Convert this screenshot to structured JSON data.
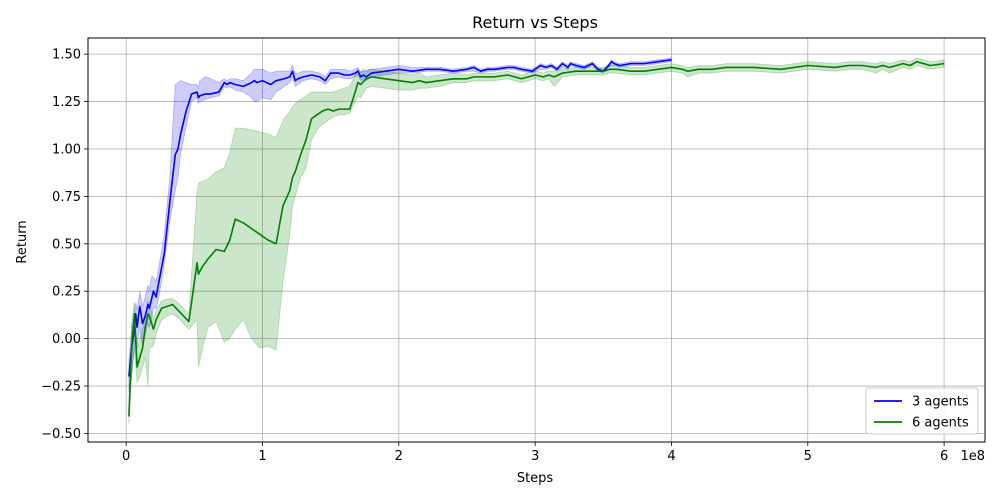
{
  "chart_data": {
    "type": "line",
    "title": "Return vs Steps",
    "xlabel": "Steps",
    "ylabel": "Return",
    "x_offset_text": "1e8",
    "xlim": [
      -0.28,
      6.3
    ],
    "ylim": [
      -0.545,
      1.585
    ],
    "xticks": [
      0,
      1,
      2,
      3,
      4,
      5,
      6
    ],
    "xtick_labels": [
      "0",
      "1",
      "2",
      "3",
      "4",
      "5",
      "6"
    ],
    "yticks": [
      -0.5,
      -0.25,
      0.0,
      0.25,
      0.5,
      0.75,
      1.0,
      1.25,
      1.5
    ],
    "ytick_labels": [
      "−0.50",
      "−0.25",
      "0.00",
      "0.25",
      "0.50",
      "0.75",
      "1.00",
      "1.25",
      "1.50"
    ],
    "grid": true,
    "legend_position": "lower-right",
    "series": [
      {
        "name": "3 agents",
        "color": "#0000ff",
        "x": [
          0.02,
          0.04,
          0.06,
          0.07,
          0.08,
          0.09,
          0.1,
          0.12,
          0.14,
          0.16,
          0.17,
          0.19,
          0.2,
          0.22,
          0.24,
          0.28,
          0.32,
          0.36,
          0.38,
          0.4,
          0.44,
          0.48,
          0.52,
          0.53,
          0.54,
          0.58,
          0.62,
          0.68,
          0.72,
          0.74,
          0.76,
          0.8,
          0.86,
          0.92,
          0.94,
          0.96,
          1.0,
          1.06,
          1.1,
          1.16,
          1.2,
          1.22,
          1.24,
          1.26,
          1.3,
          1.36,
          1.42,
          1.46,
          1.5,
          1.56,
          1.6,
          1.64,
          1.68,
          1.7,
          1.72,
          1.74,
          1.76,
          1.78,
          1.8,
          1.9,
          2.0,
          2.1,
          2.2,
          2.3,
          2.4,
          2.5,
          2.55,
          2.6,
          2.65,
          2.7,
          2.8,
          2.84,
          2.9,
          2.98,
          3.04,
          3.08,
          3.12,
          3.16,
          3.2,
          3.24,
          3.26,
          3.3,
          3.36,
          3.42,
          3.46,
          3.5,
          3.54,
          3.56,
          3.58,
          3.62,
          3.7,
          3.8,
          3.9,
          4.0
        ],
        "y": [
          -0.2,
          -0.05,
          0.05,
          0.13,
          0.06,
          0.12,
          0.17,
          0.08,
          0.12,
          0.18,
          0.16,
          0.22,
          0.25,
          0.22,
          0.3,
          0.45,
          0.72,
          0.97,
          1.0,
          1.08,
          1.2,
          1.29,
          1.3,
          1.27,
          1.28,
          1.29,
          1.29,
          1.3,
          1.35,
          1.34,
          1.35,
          1.34,
          1.33,
          1.35,
          1.36,
          1.35,
          1.36,
          1.34,
          1.36,
          1.37,
          1.38,
          1.41,
          1.36,
          1.37,
          1.38,
          1.39,
          1.38,
          1.36,
          1.4,
          1.4,
          1.39,
          1.39,
          1.4,
          1.41,
          1.38,
          1.39,
          1.38,
          1.39,
          1.4,
          1.41,
          1.42,
          1.41,
          1.42,
          1.42,
          1.41,
          1.42,
          1.43,
          1.41,
          1.42,
          1.42,
          1.43,
          1.43,
          1.42,
          1.41,
          1.44,
          1.43,
          1.44,
          1.42,
          1.45,
          1.43,
          1.45,
          1.44,
          1.43,
          1.45,
          1.42,
          1.41,
          1.44,
          1.46,
          1.45,
          1.44,
          1.45,
          1.45,
          1.46,
          1.47
        ],
        "lower": [
          -0.28,
          -0.2,
          -0.05,
          0.03,
          -0.05,
          0.02,
          0.06,
          -0.04,
          0.02,
          0.08,
          0.06,
          0.12,
          0.16,
          0.16,
          0.22,
          0.4,
          0.62,
          0.78,
          0.85,
          0.98,
          1.12,
          1.25,
          1.27,
          1.24,
          1.25,
          1.26,
          1.27,
          1.28,
          1.33,
          1.32,
          1.33,
          1.31,
          1.3,
          1.27,
          1.25,
          1.25,
          1.27,
          1.26,
          1.3,
          1.33,
          1.35,
          1.38,
          1.33,
          1.34,
          1.36,
          1.37,
          1.36,
          1.34,
          1.37,
          1.38,
          1.37,
          1.37,
          1.38,
          1.39,
          1.36,
          1.37,
          1.36,
          1.37,
          1.38,
          1.39,
          1.4,
          1.4,
          1.41,
          1.41,
          1.4,
          1.41,
          1.41,
          1.4,
          1.41,
          1.41,
          1.42,
          1.42,
          1.41,
          1.4,
          1.42,
          1.42,
          1.43,
          1.41,
          1.43,
          1.42,
          1.44,
          1.43,
          1.42,
          1.44,
          1.41,
          1.4,
          1.43,
          1.44,
          1.44,
          1.43,
          1.44,
          1.44,
          1.45,
          1.46
        ],
        "upper": [
          -0.12,
          0.05,
          0.13,
          0.19,
          0.15,
          0.2,
          0.25,
          0.17,
          0.22,
          0.28,
          0.26,
          0.33,
          0.32,
          0.3,
          0.38,
          0.55,
          0.85,
          1.34,
          1.35,
          1.36,
          1.35,
          1.34,
          1.34,
          1.32,
          1.36,
          1.38,
          1.37,
          1.35,
          1.37,
          1.36,
          1.37,
          1.37,
          1.36,
          1.4,
          1.42,
          1.42,
          1.42,
          1.4,
          1.41,
          1.41,
          1.41,
          1.44,
          1.4,
          1.4,
          1.41,
          1.41,
          1.4,
          1.38,
          1.42,
          1.42,
          1.42,
          1.41,
          1.42,
          1.43,
          1.4,
          1.42,
          1.41,
          1.42,
          1.42,
          1.43,
          1.44,
          1.43,
          1.43,
          1.43,
          1.42,
          1.43,
          1.44,
          1.42,
          1.43,
          1.43,
          1.44,
          1.44,
          1.43,
          1.42,
          1.45,
          1.44,
          1.45,
          1.43,
          1.46,
          1.44,
          1.46,
          1.45,
          1.44,
          1.46,
          1.43,
          1.42,
          1.45,
          1.47,
          1.46,
          1.45,
          1.46,
          1.46,
          1.47,
          1.48
        ]
      },
      {
        "name": "6 agents",
        "color": "#008000",
        "x": [
          0.02,
          0.04,
          0.06,
          0.08,
          0.1,
          0.12,
          0.14,
          0.16,
          0.17,
          0.2,
          0.22,
          0.26,
          0.3,
          0.34,
          0.38,
          0.42,
          0.46,
          0.52,
          0.53,
          0.56,
          0.6,
          0.66,
          0.72,
          0.76,
          0.8,
          0.86,
          0.92,
          0.98,
          1.04,
          1.1,
          1.15,
          1.2,
          1.22,
          1.24,
          1.28,
          1.32,
          1.36,
          1.4,
          1.44,
          1.48,
          1.52,
          1.56,
          1.6,
          1.64,
          1.68,
          1.7,
          1.72,
          1.76,
          1.8,
          1.9,
          2.0,
          2.1,
          2.15,
          2.2,
          2.3,
          2.4,
          2.5,
          2.55,
          2.6,
          2.7,
          2.8,
          2.85,
          2.9,
          3.0,
          3.06,
          3.1,
          3.14,
          3.2,
          3.3,
          3.35,
          3.4,
          3.5,
          3.55,
          3.6,
          3.7,
          3.8,
          3.9,
          4.0,
          4.08,
          4.12,
          4.2,
          4.3,
          4.4,
          4.6,
          4.8,
          4.9,
          5.0,
          5.2,
          5.3,
          5.4,
          5.5,
          5.55,
          5.6,
          5.7,
          5.75,
          5.8,
          5.9,
          6.0
        ],
        "y": [
          -0.41,
          -0.05,
          0.13,
          -0.15,
          -0.1,
          -0.05,
          0.06,
          0.13,
          0.12,
          0.05,
          0.1,
          0.16,
          0.17,
          0.18,
          0.15,
          0.12,
          0.09,
          0.4,
          0.34,
          0.38,
          0.42,
          0.47,
          0.46,
          0.52,
          0.63,
          0.61,
          0.58,
          0.55,
          0.52,
          0.5,
          0.7,
          0.78,
          0.85,
          0.88,
          0.97,
          1.05,
          1.16,
          1.18,
          1.2,
          1.21,
          1.2,
          1.21,
          1.21,
          1.21,
          1.3,
          1.35,
          1.34,
          1.37,
          1.38,
          1.37,
          1.36,
          1.35,
          1.36,
          1.35,
          1.36,
          1.37,
          1.37,
          1.38,
          1.38,
          1.38,
          1.39,
          1.38,
          1.37,
          1.39,
          1.38,
          1.39,
          1.38,
          1.4,
          1.41,
          1.41,
          1.41,
          1.41,
          1.42,
          1.42,
          1.41,
          1.41,
          1.42,
          1.43,
          1.42,
          1.41,
          1.42,
          1.42,
          1.43,
          1.43,
          1.42,
          1.43,
          1.44,
          1.43,
          1.44,
          1.44,
          1.43,
          1.44,
          1.43,
          1.45,
          1.44,
          1.46,
          1.44,
          1.45
        ],
        "lower": [
          -0.45,
          -0.2,
          -0.05,
          -0.23,
          -0.2,
          -0.15,
          -0.1,
          -0.25,
          -0.05,
          -0.04,
          0.03,
          0.1,
          0.12,
          0.13,
          0.11,
          0.08,
          0.05,
          0.1,
          -0.15,
          -0.05,
          0.06,
          0.09,
          -0.02,
          0.0,
          0.05,
          0.1,
          0.0,
          -0.05,
          -0.04,
          -0.06,
          0.3,
          0.55,
          0.7,
          0.75,
          0.85,
          0.9,
          1.05,
          1.1,
          1.13,
          1.15,
          1.17,
          1.18,
          1.18,
          1.19,
          1.25,
          1.28,
          1.27,
          1.32,
          1.33,
          1.32,
          1.31,
          1.31,
          1.32,
          1.32,
          1.33,
          1.35,
          1.35,
          1.36,
          1.36,
          1.36,
          1.37,
          1.36,
          1.35,
          1.37,
          1.36,
          1.37,
          1.33,
          1.38,
          1.39,
          1.39,
          1.39,
          1.39,
          1.4,
          1.4,
          1.39,
          1.39,
          1.4,
          1.41,
          1.4,
          1.38,
          1.4,
          1.4,
          1.41,
          1.41,
          1.4,
          1.41,
          1.42,
          1.41,
          1.42,
          1.42,
          1.4,
          1.42,
          1.4,
          1.43,
          1.42,
          1.44,
          1.42,
          1.43
        ],
        "upper": [
          -0.35,
          0.08,
          0.19,
          -0.06,
          0.0,
          0.05,
          0.12,
          0.2,
          0.18,
          0.1,
          0.15,
          0.2,
          0.21,
          0.21,
          0.19,
          0.16,
          0.13,
          0.77,
          0.82,
          0.83,
          0.84,
          0.88,
          0.9,
          0.98,
          1.11,
          1.11,
          1.1,
          1.09,
          1.08,
          1.06,
          1.15,
          1.2,
          1.22,
          1.24,
          1.26,
          1.28,
          1.3,
          1.3,
          1.3,
          1.3,
          1.3,
          1.31,
          1.32,
          1.33,
          1.39,
          1.42,
          1.41,
          1.41,
          1.42,
          1.41,
          1.4,
          1.39,
          1.4,
          1.38,
          1.39,
          1.4,
          1.39,
          1.4,
          1.4,
          1.4,
          1.41,
          1.4,
          1.39,
          1.41,
          1.4,
          1.41,
          1.41,
          1.42,
          1.43,
          1.43,
          1.43,
          1.43,
          1.44,
          1.44,
          1.43,
          1.43,
          1.44,
          1.45,
          1.44,
          1.43,
          1.44,
          1.44,
          1.45,
          1.45,
          1.44,
          1.45,
          1.46,
          1.45,
          1.46,
          1.46,
          1.45,
          1.46,
          1.45,
          1.47,
          1.46,
          1.48,
          1.46,
          1.47
        ]
      }
    ]
  }
}
